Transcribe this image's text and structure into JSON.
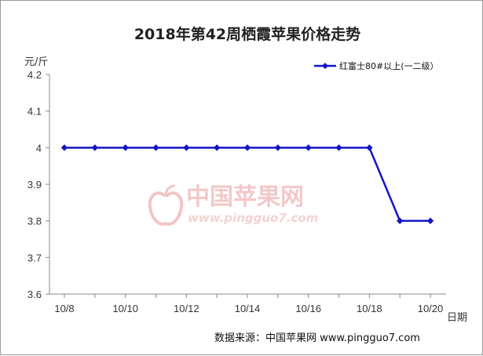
{
  "chart_data": {
    "type": "line",
    "title": "2018年第42周栖霞苹果价格走势",
    "ylabel": "元/斤",
    "xlabel": "日期",
    "ylim": [
      3.6,
      4.2
    ],
    "yticks": [
      "3.6",
      "3.7",
      "3.8",
      "3.9",
      "4",
      "4.1",
      "4.2"
    ],
    "x": [
      "10/8",
      "10/9",
      "10/10",
      "10/11",
      "10/12",
      "10/13",
      "10/14",
      "10/15",
      "10/16",
      "10/17",
      "10/18",
      "10/19",
      "10/20"
    ],
    "xtick_labels": [
      "10/8",
      "10/10",
      "10/12",
      "10/14",
      "10/16",
      "10/18",
      "10/20"
    ],
    "series": [
      {
        "name": "红富士80#以上(一二级）",
        "color": "#1515c8",
        "values": [
          4,
          4,
          4,
          4,
          4,
          4,
          4,
          4,
          4,
          4,
          4,
          3.8,
          3.8
        ]
      }
    ],
    "legend": "top-right",
    "grid": false
  },
  "watermark": {
    "name": "中国苹果网",
    "url": "www.pingguo7.com",
    "icon": "apple-icon"
  },
  "source": "数据来源：中国苹果网 www.pingguo7.com"
}
